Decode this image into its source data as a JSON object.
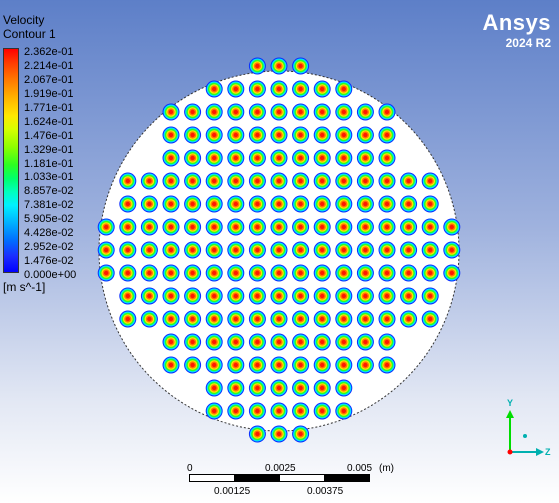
{
  "legend": {
    "title": "Velocity",
    "subtitle": "Contour 1",
    "units": "[m s^-1]",
    "ticks": [
      "2.362e-01",
      "2.214e-01",
      "2.067e-01",
      "1.919e-01",
      "1.771e-01",
      "1.624e-01",
      "1.476e-01",
      "1.329e-01",
      "1.181e-01",
      "1.033e-01",
      "8.857e-02",
      "7.381e-02",
      "5.905e-02",
      "4.428e-02",
      "2.952e-02",
      "1.476e-02",
      "0.000e+00"
    ]
  },
  "logo": {
    "word": "Ansys",
    "version": "2024 R2"
  },
  "scale": {
    "top_labels": [
      "0",
      "0.0025",
      "0.005",
      "(m)"
    ],
    "bottom_labels": [
      "0.00125",
      "0.00375"
    ]
  },
  "axes": {
    "y": "Y",
    "z": "Z",
    "x_color": "#ff0000",
    "y_color": "#00ff00",
    "z_color": "#00b0b0"
  },
  "domain": {
    "row_counts": [
      3,
      7,
      11,
      11,
      11,
      15,
      15,
      17,
      17,
      17,
      15,
      15,
      11,
      11,
      7,
      7,
      3
    ],
    "contour_colors": [
      "#0a2cff",
      "#00e0ff",
      "#2cff22",
      "#ffe800",
      "#ff7a00",
      "#ff1a00"
    ]
  }
}
